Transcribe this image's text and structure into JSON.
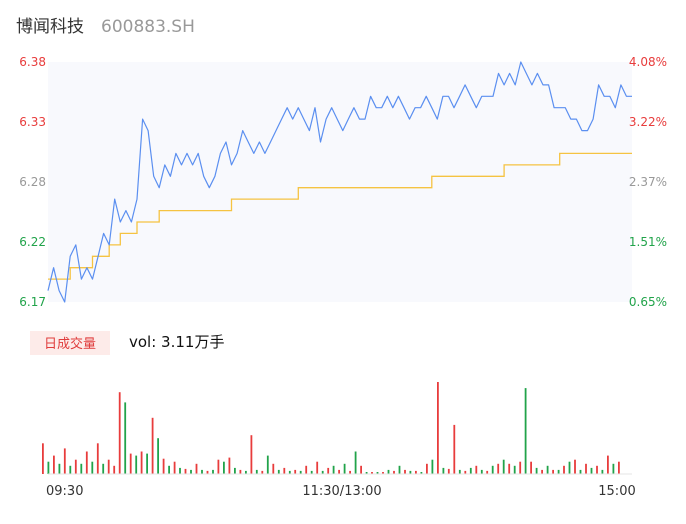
{
  "header": {
    "name": "博闻科技",
    "code": "600883.SH"
  },
  "colors": {
    "price_line": "#5b8ff0",
    "avg_line": "#f5c342",
    "up": "#e83c3c",
    "down": "#21a34a",
    "neutral": "#999999",
    "badge_bg": "#fdebe9"
  },
  "volume_panel": {
    "badge_label": "日成交量",
    "vol_text": "vol: 3.11万手"
  },
  "chart_data": {
    "type": "line",
    "ylim": [
      6.17,
      6.38
    ],
    "price_ticks": [
      {
        "value": 6.38,
        "label": "6.38",
        "color": "up"
      },
      {
        "value": 6.33,
        "label": "6.33",
        "color": "up"
      },
      {
        "value": 6.28,
        "label": "6.28",
        "color": "neutral"
      },
      {
        "value": 6.22,
        "label": "6.22",
        "color": "down"
      },
      {
        "value": 6.17,
        "label": "6.17",
        "color": "down"
      }
    ],
    "pct_ticks": [
      {
        "label": "4.08%",
        "color": "up"
      },
      {
        "label": "3.22%",
        "color": "up"
      },
      {
        "label": "2.37%",
        "color": "neutral"
      },
      {
        "label": "1.51%",
        "color": "down"
      },
      {
        "label": "0.65%",
        "color": "down"
      }
    ],
    "x_labels": [
      "09:30",
      "11:30/13:00",
      "15:00"
    ],
    "series": [
      {
        "kind": "price",
        "values": [
          6.18,
          6.2,
          6.18,
          6.17,
          6.21,
          6.22,
          6.19,
          6.2,
          6.19,
          6.21,
          6.23,
          6.22,
          6.26,
          6.24,
          6.25,
          6.24,
          6.26,
          6.33,
          6.32,
          6.28,
          6.27,
          6.29,
          6.28,
          6.3,
          6.29,
          6.3,
          6.29,
          6.3,
          6.28,
          6.27,
          6.28,
          6.3,
          6.31,
          6.29,
          6.3,
          6.32,
          6.31,
          6.3,
          6.31,
          6.3,
          6.31,
          6.32,
          6.33,
          6.34,
          6.33,
          6.34,
          6.33,
          6.32,
          6.34,
          6.31,
          6.33,
          6.34,
          6.33,
          6.32,
          6.33,
          6.34,
          6.33,
          6.33,
          6.35,
          6.34,
          6.34,
          6.35,
          6.34,
          6.35,
          6.34,
          6.33,
          6.34,
          6.34,
          6.35,
          6.34,
          6.33,
          6.35,
          6.35,
          6.34,
          6.35,
          6.36,
          6.35,
          6.34,
          6.35,
          6.35,
          6.35,
          6.37,
          6.36,
          6.37,
          6.36,
          6.38,
          6.37,
          6.36,
          6.37,
          6.36,
          6.36,
          6.34,
          6.34,
          6.34,
          6.33,
          6.33,
          6.32,
          6.32,
          6.33,
          6.36,
          6.35,
          6.35,
          6.34,
          6.36,
          6.35,
          6.35
        ]
      },
      {
        "kind": "average",
        "values": [
          6.19,
          6.19,
          6.19,
          6.19,
          6.2,
          6.2,
          6.2,
          6.2,
          6.21,
          6.21,
          6.21,
          6.22,
          6.22,
          6.23,
          6.23,
          6.23,
          6.24,
          6.24,
          6.24,
          6.24,
          6.25,
          6.25,
          6.25,
          6.25,
          6.25,
          6.25,
          6.25,
          6.25,
          6.25,
          6.25,
          6.25,
          6.25,
          6.25,
          6.26,
          6.26,
          6.26,
          6.26,
          6.26,
          6.26,
          6.26,
          6.26,
          6.26,
          6.26,
          6.26,
          6.26,
          6.27,
          6.27,
          6.27,
          6.27,
          6.27,
          6.27,
          6.27,
          6.27,
          6.27,
          6.27,
          6.27,
          6.27,
          6.27,
          6.27,
          6.27,
          6.27,
          6.27,
          6.27,
          6.27,
          6.27,
          6.27,
          6.27,
          6.27,
          6.27,
          6.28,
          6.28,
          6.28,
          6.28,
          6.28,
          6.28,
          6.28,
          6.28,
          6.28,
          6.28,
          6.28,
          6.28,
          6.28,
          6.29,
          6.29,
          6.29,
          6.29,
          6.29,
          6.29,
          6.29,
          6.29,
          6.29,
          6.29,
          6.3,
          6.3,
          6.3,
          6.3,
          6.3,
          6.3,
          6.3,
          6.3,
          6.3,
          6.3,
          6.3,
          6.3,
          6.3,
          6.3
        ]
      }
    ],
    "volume": [
      {
        "v": 30,
        "d": "up"
      },
      {
        "v": 12,
        "d": "down"
      },
      {
        "v": 18,
        "d": "up"
      },
      {
        "v": 10,
        "d": "down"
      },
      {
        "v": 25,
        "d": "up"
      },
      {
        "v": 8,
        "d": "down"
      },
      {
        "v": 14,
        "d": "up"
      },
      {
        "v": 10,
        "d": "down"
      },
      {
        "v": 22,
        "d": "up"
      },
      {
        "v": 12,
        "d": "down"
      },
      {
        "v": 30,
        "d": "up"
      },
      {
        "v": 10,
        "d": "down"
      },
      {
        "v": 14,
        "d": "up"
      },
      {
        "v": 8,
        "d": "up"
      },
      {
        "v": 80,
        "d": "up"
      },
      {
        "v": 70,
        "d": "down"
      },
      {
        "v": 20,
        "d": "up"
      },
      {
        "v": 18,
        "d": "down"
      },
      {
        "v": 22,
        "d": "up"
      },
      {
        "v": 20,
        "d": "down"
      },
      {
        "v": 55,
        "d": "up"
      },
      {
        "v": 35,
        "d": "down"
      },
      {
        "v": 15,
        "d": "up"
      },
      {
        "v": 8,
        "d": "down"
      },
      {
        "v": 12,
        "d": "up"
      },
      {
        "v": 6,
        "d": "down"
      },
      {
        "v": 5,
        "d": "up"
      },
      {
        "v": 4,
        "d": "down"
      },
      {
        "v": 10,
        "d": "up"
      },
      {
        "v": 4,
        "d": "down"
      },
      {
        "v": 3,
        "d": "up"
      },
      {
        "v": 4,
        "d": "down"
      },
      {
        "v": 14,
        "d": "up"
      },
      {
        "v": 12,
        "d": "down"
      },
      {
        "v": 16,
        "d": "up"
      },
      {
        "v": 6,
        "d": "down"
      },
      {
        "v": 4,
        "d": "up"
      },
      {
        "v": 3,
        "d": "down"
      },
      {
        "v": 38,
        "d": "up"
      },
      {
        "v": 4,
        "d": "down"
      },
      {
        "v": 3,
        "d": "up"
      },
      {
        "v": 18,
        "d": "down"
      },
      {
        "v": 10,
        "d": "up"
      },
      {
        "v": 4,
        "d": "down"
      },
      {
        "v": 6,
        "d": "up"
      },
      {
        "v": 3,
        "d": "down"
      },
      {
        "v": 4,
        "d": "up"
      },
      {
        "v": 3,
        "d": "down"
      },
      {
        "v": 8,
        "d": "up"
      },
      {
        "v": 3,
        "d": "down"
      },
      {
        "v": 12,
        "d": "up"
      },
      {
        "v": 3,
        "d": "down"
      },
      {
        "v": 6,
        "d": "up"
      },
      {
        "v": 8,
        "d": "down"
      },
      {
        "v": 4,
        "d": "up"
      },
      {
        "v": 10,
        "d": "down"
      },
      {
        "v": 3,
        "d": "up"
      },
      {
        "v": 22,
        "d": "down"
      },
      {
        "v": 8,
        "d": "up"
      },
      {
        "v": 2,
        "d": "down"
      },
      {
        "v": 2,
        "d": "up"
      },
      {
        "v": 2,
        "d": "down"
      },
      {
        "v": 2,
        "d": "up"
      },
      {
        "v": 4,
        "d": "down"
      },
      {
        "v": 3,
        "d": "up"
      },
      {
        "v": 8,
        "d": "down"
      },
      {
        "v": 4,
        "d": "up"
      },
      {
        "v": 3,
        "d": "down"
      },
      {
        "v": 3,
        "d": "up"
      },
      {
        "v": 2,
        "d": "down"
      },
      {
        "v": 10,
        "d": "up"
      },
      {
        "v": 14,
        "d": "down"
      },
      {
        "v": 90,
        "d": "up"
      },
      {
        "v": 6,
        "d": "down"
      },
      {
        "v": 5,
        "d": "up"
      },
      {
        "v": 48,
        "d": "up"
      },
      {
        "v": 4,
        "d": "down"
      },
      {
        "v": 3,
        "d": "up"
      },
      {
        "v": 6,
        "d": "down"
      },
      {
        "v": 8,
        "d": "up"
      },
      {
        "v": 4,
        "d": "down"
      },
      {
        "v": 3,
        "d": "up"
      },
      {
        "v": 8,
        "d": "down"
      },
      {
        "v": 10,
        "d": "up"
      },
      {
        "v": 14,
        "d": "down"
      },
      {
        "v": 10,
        "d": "up"
      },
      {
        "v": 8,
        "d": "down"
      },
      {
        "v": 12,
        "d": "up"
      },
      {
        "v": 84,
        "d": "down"
      },
      {
        "v": 12,
        "d": "up"
      },
      {
        "v": 6,
        "d": "down"
      },
      {
        "v": 4,
        "d": "up"
      },
      {
        "v": 8,
        "d": "down"
      },
      {
        "v": 4,
        "d": "up"
      },
      {
        "v": 4,
        "d": "down"
      },
      {
        "v": 8,
        "d": "up"
      },
      {
        "v": 12,
        "d": "down"
      },
      {
        "v": 14,
        "d": "up"
      },
      {
        "v": 4,
        "d": "down"
      },
      {
        "v": 10,
        "d": "up"
      },
      {
        "v": 6,
        "d": "down"
      },
      {
        "v": 8,
        "d": "up"
      },
      {
        "v": 4,
        "d": "down"
      },
      {
        "v": 18,
        "d": "up"
      },
      {
        "v": 10,
        "d": "down"
      },
      {
        "v": 12,
        "d": "up"
      }
    ]
  }
}
